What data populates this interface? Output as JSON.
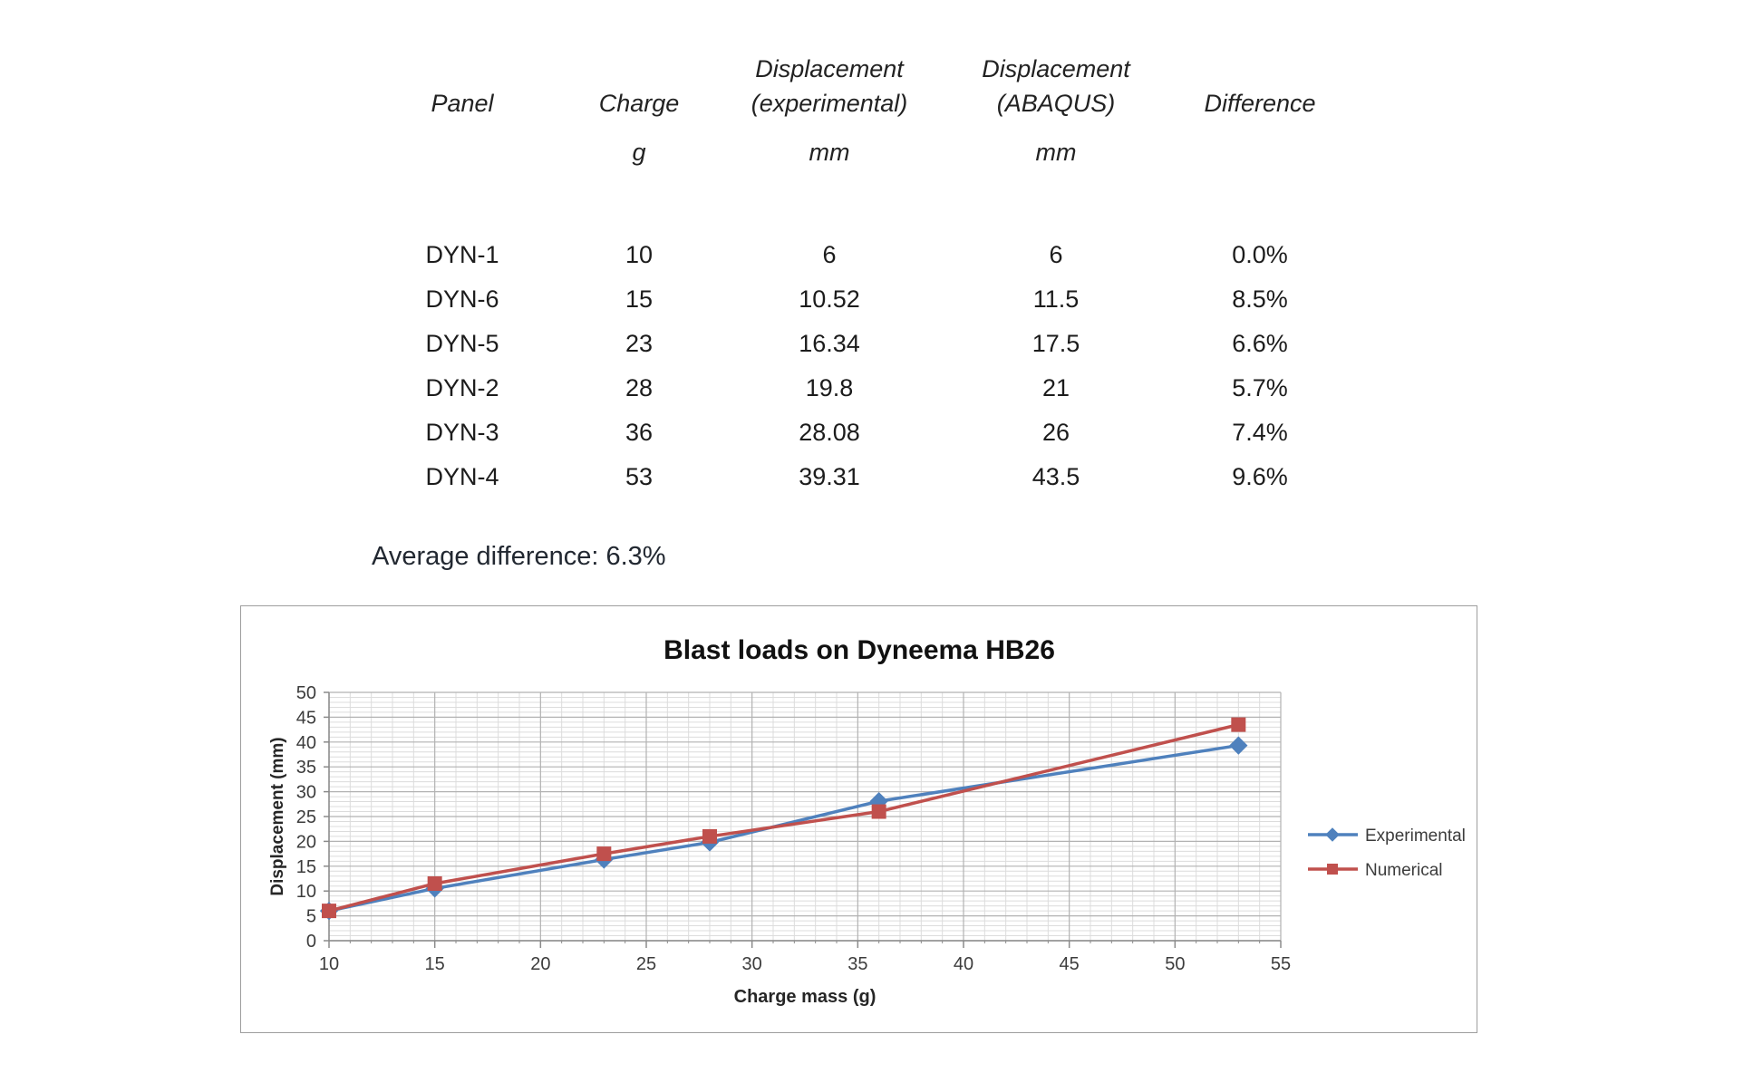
{
  "table": {
    "columns": [
      {
        "l1": "",
        "l2": "Panel",
        "l3": ""
      },
      {
        "l1": "",
        "l2": "Charge",
        "l3": "g"
      },
      {
        "l1": "Displacement",
        "l2": "(experimental)",
        "l3": "mm"
      },
      {
        "l1": "Displacement",
        "l2": "(ABAQUS)",
        "l3": "mm"
      },
      {
        "l1": "",
        "l2": "Difference",
        "l3": ""
      }
    ],
    "rows": [
      [
        "DYN-1",
        "10",
        "6",
        "6",
        "0.0%"
      ],
      [
        "DYN-6",
        "15",
        "10.52",
        "11.5",
        "8.5%"
      ],
      [
        "DYN-5",
        "23",
        "16.34",
        "17.5",
        "6.6%"
      ],
      [
        "DYN-2",
        "28",
        "19.8",
        "21",
        "5.7%"
      ],
      [
        "DYN-3",
        "36",
        "28.08",
        "26",
        "7.4%"
      ],
      [
        "DYN-4",
        "53",
        "39.31",
        "43.5",
        "9.6%"
      ]
    ],
    "average": "Average difference: 6.3%"
  },
  "chart_data": {
    "type": "line",
    "title": "Blast loads on Dyneema HB26",
    "xlabel": "Charge mass (g)",
    "ylabel": "Displacement (mm)",
    "x": [
      10,
      15,
      23,
      28,
      36,
      53
    ],
    "series": [
      {
        "name": "Experimental",
        "color": "#4F81BD",
        "marker": "diamond",
        "values": [
          6,
          10.52,
          16.34,
          19.8,
          28.08,
          39.31
        ]
      },
      {
        "name": "Numerical",
        "color": "#C0504D",
        "marker": "square",
        "values": [
          6,
          11.5,
          17.5,
          21,
          26,
          43.5
        ]
      }
    ],
    "xlim": [
      10,
      55
    ],
    "ylim": [
      0,
      50
    ],
    "x_ticks": [
      10,
      15,
      20,
      25,
      30,
      35,
      40,
      45,
      50,
      55
    ],
    "y_ticks": [
      0,
      5,
      10,
      15,
      20,
      25,
      30,
      35,
      40,
      45,
      50
    ],
    "grid": "major+minor",
    "legend_position": "right",
    "colors": {
      "grid_minor": "#dcdcdc",
      "grid_major": "#b2b2b2",
      "axis": "#8a8a8a"
    }
  }
}
